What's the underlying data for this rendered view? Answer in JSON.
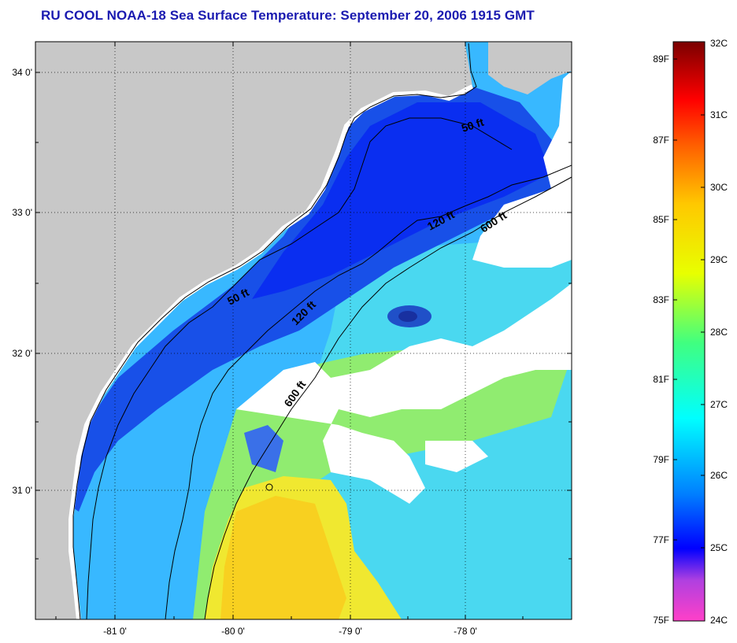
{
  "title": "RU COOL  NOAA-18  Sea Surface Temperature:  September 20, 2006 1915 GMT",
  "axes": {
    "lat_ticks": [
      "34 0'",
      "33 0'",
      "32 0'",
      "31 0'"
    ],
    "lon_ticks": [
      "-81 0'",
      "-80 0'",
      "-79 0'",
      "-78 0'"
    ]
  },
  "contours": [
    {
      "label": "50 ft"
    },
    {
      "label": "50 ft"
    },
    {
      "label": "120 ft"
    },
    {
      "label": "120 ft"
    },
    {
      "label": "600 ft"
    },
    {
      "label": "600 ft"
    }
  ],
  "colorbar": {
    "fahrenheit": [
      "89F",
      "87F",
      "85F",
      "83F",
      "81F",
      "79F",
      "77F",
      "75F"
    ],
    "celsius": [
      "32C",
      "31C",
      "30C",
      "29C",
      "28C",
      "27C",
      "26C",
      "25C",
      "24C"
    ]
  },
  "colors": {
    "land": "#c8c8c8",
    "cloud": "#ffffff",
    "title": "#1a1ab0"
  }
}
